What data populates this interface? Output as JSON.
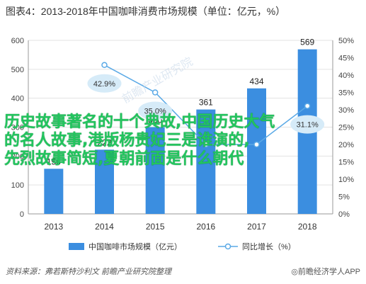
{
  "title": "图表4：2013-2018年中国咖啡消费市场规模（单位：亿元，%）",
  "source": "资料来源：弗若斯特沙利文 前瞻产业研究院整理",
  "brand": "◎前瞻经济学人APP",
  "watermark": "前瞻产业研究院",
  "overlay_lines": [
    "历史故事著名的十个典故,中国历史大气",
    "的名人故事,港版杨贵妃三是谁演的,",
    "先烈故事简短,夏朝前面是什么朝代"
  ],
  "colors": {
    "bar": "#3b8ee0",
    "line": "#5aa9e6",
    "bubble": "#d6ebf8"
  },
  "chart_data": {
    "type": "bar",
    "categories": [
      "2013",
      "2014",
      "2015",
      "2016",
      "2017",
      "2018"
    ],
    "series": [
      {
        "name": "中国咖啡市场规模（亿元）",
        "type": "bar",
        "axis": "left",
        "values": [
          156,
          222,
          300,
          361,
          434,
          569
        ],
        "labels": [
          "156",
          "222",
          "300",
          "361",
          "434",
          "569"
        ]
      },
      {
        "name": "同比增长（%）",
        "type": "line",
        "axis": "right",
        "values": [
          null,
          42.9,
          35.0,
          20.0,
          20.0,
          31.1
        ],
        "labels": [
          "",
          "42.9%",
          "35.0%",
          "",
          "",
          "31.1%"
        ]
      }
    ],
    "yleft": {
      "min": 0,
      "max": 600,
      "ticks": [
        "0",
        "100",
        "200",
        "300",
        "400",
        "500",
        "600"
      ]
    },
    "yright": {
      "min": 0,
      "max": 50,
      "ticks": [
        "0%",
        "5%",
        "10%",
        "15%",
        "20%",
        "25%",
        "30%",
        "35%",
        "40%",
        "45%",
        "50%"
      ]
    },
    "grid": true,
    "legend": "bottom"
  }
}
